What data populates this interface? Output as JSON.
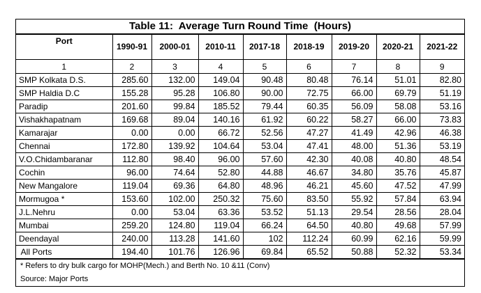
{
  "title": "Table 11:  Average Turn Round Time  (Hours)",
  "headers": [
    "Port",
    "1990-91",
    "2000-01",
    "2010-11",
    "2017-18",
    "2018-19",
    "2019-20",
    "2020-21",
    "2021-22"
  ],
  "column_numbers": [
    "1",
    "2",
    "3",
    "4",
    "5",
    "6",
    "7",
    "8",
    "9"
  ],
  "rows": [
    [
      "SMP Kolkata D.S.",
      "285.60",
      "132.00",
      "149.04",
      "90.48",
      "80.48",
      "76.14",
      "51.01",
      "82.80"
    ],
    [
      "SMP Haldia D.C",
      "155.28",
      "95.28",
      "106.80",
      "90.00",
      "72.75",
      "66.00",
      "69.79",
      "51.19"
    ],
    [
      "Paradip",
      "201.60",
      "99.84",
      "185.52",
      "79.44",
      "60.35",
      "56.09",
      "58.08",
      "53.16"
    ],
    [
      "Vishakhapatnam",
      "169.68",
      "89.04",
      "140.16",
      "61.92",
      "60.22",
      "58.27",
      "66.00",
      "73.83"
    ],
    [
      "Kamarajar",
      "0.00",
      "0.00",
      "66.72",
      "52.56",
      "47.27",
      "41.49",
      "42.96",
      "46.38"
    ],
    [
      "Chennai",
      "172.80",
      "139.92",
      "104.64",
      "53.04",
      "47.41",
      "48.00",
      "51.36",
      "53.19"
    ],
    [
      "V.O.Chidambaranar",
      "112.80",
      "98.40",
      "96.00",
      "57.60",
      "42.30",
      "40.08",
      "40.80",
      "48.54"
    ],
    [
      "Cochin",
      "96.00",
      "74.64",
      "52.80",
      "44.88",
      "46.67",
      "34.80",
      "35.76",
      "45.87"
    ],
    [
      "New Mangalore",
      "119.04",
      "69.36",
      "64.80",
      "48.96",
      "46.21",
      "45.60",
      "47.52",
      "47.99"
    ],
    [
      "Mormugoa *",
      "153.60",
      "102.00",
      "250.32",
      "75.60",
      "83.50",
      "55.92",
      "57.84",
      "63.94"
    ],
    [
      "J.L.Nehru",
      "0.00",
      "53.04",
      "63.36",
      "53.52",
      "51.13",
      "29.54",
      "28.56",
      "28.04"
    ],
    [
      "Mumbai",
      "259.20",
      "124.80",
      "119.04",
      "66.24",
      "64.50",
      "40.80",
      "49.68",
      "57.99"
    ],
    [
      "Deendayal",
      "240.00",
      "113.28",
      "141.60",
      "102",
      "112.24",
      "60.99",
      "62.16",
      "59.99"
    ],
    [
      " All Ports",
      "194.40",
      "101.76",
      "126.96",
      "69.84",
      "65.52",
      "50.88",
      "52.32",
      "53.34"
    ]
  ],
  "footnote": "*  Refers to dry bulk cargo for MOHP(Mech.) and Berth No. 10 &11 (Conv)",
  "source": "Source:   Major Ports"
}
